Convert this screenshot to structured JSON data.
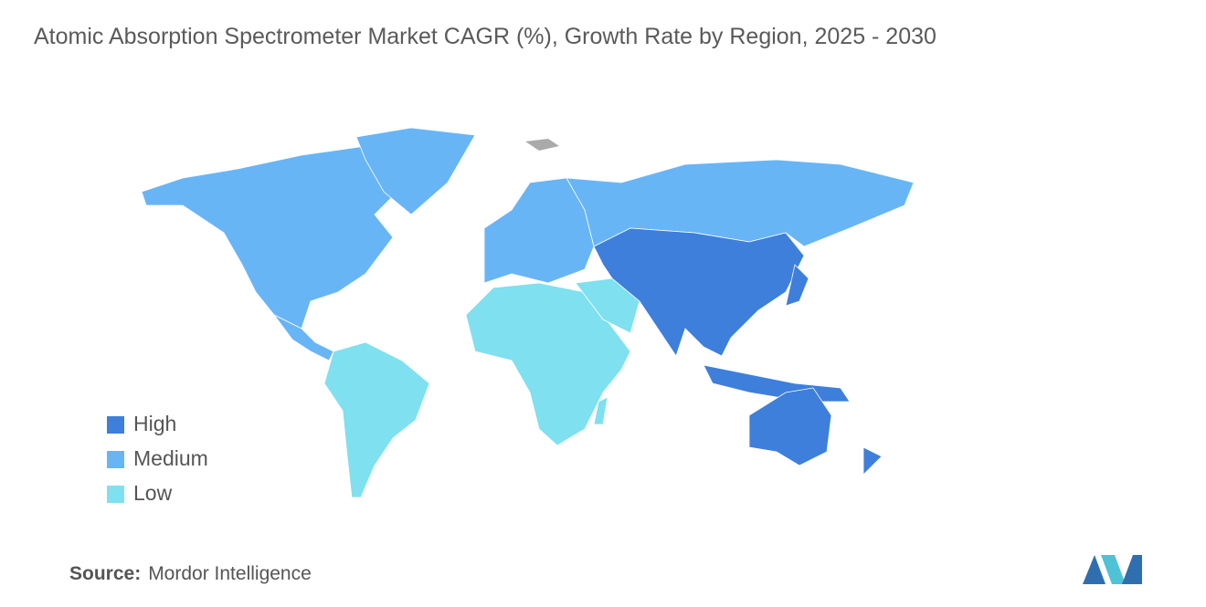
{
  "title": "Atomic Absorption Spectrometer Market CAGR (%), Growth Rate by Region, 2025 - 2030",
  "legend": [
    {
      "label": "High",
      "color": "#3d7fdb"
    },
    {
      "label": "Medium",
      "color": "#68b5f6"
    },
    {
      "label": "Low",
      "color": "#7fe0ef"
    }
  ],
  "source": {
    "label": "Source:",
    "text": "Mordor Intelligence"
  }
}
